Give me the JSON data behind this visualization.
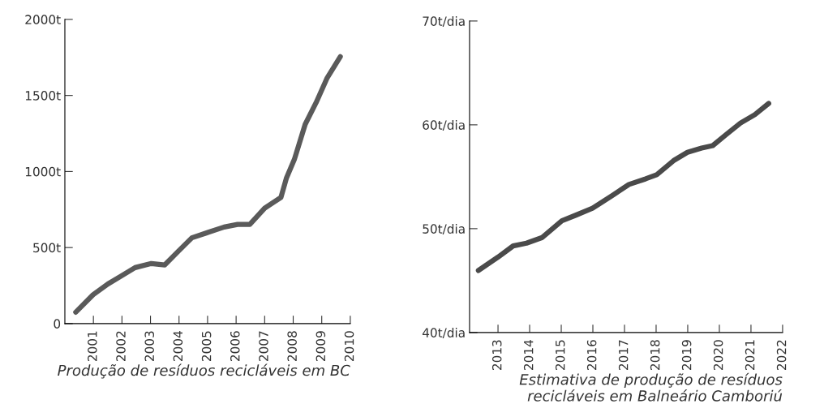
{
  "chart_data": [
    {
      "type": "line",
      "xlabel": "Produção de resíduos recicláveis em BC",
      "xlim": [
        2000,
        2010
      ],
      "xticks": [
        2001,
        2002,
        2003,
        2004,
        2005,
        2006,
        2007,
        2008,
        2009,
        2010
      ],
      "ylim": [
        0,
        2000
      ],
      "yticks": [
        0,
        {
          "value": 500,
          "label": "500t"
        },
        {
          "value": 1000,
          "label": "1000t"
        },
        {
          "value": 1500,
          "label": "1500t"
        },
        {
          "value": 2000,
          "label": "2000t"
        }
      ],
      "grid": false,
      "legend": false,
      "series": [
        {
          "color": "#5a5a5a",
          "x": [
            2000.38,
            2000.99,
            2001.51,
            2001.99,
            2002.46,
            2003.03,
            2003.5,
            2003.97,
            2004.45,
            2005.01,
            2005.58,
            2006.05,
            2006.48,
            2007.0,
            2007.57,
            2007.76,
            2008.04,
            2008.42,
            2008.8,
            2009.18,
            2009.65
          ],
          "values": [
            75,
            190,
            261,
            315,
            368,
            395,
            386,
            475,
            564,
            599,
            635,
            652,
            652,
            759,
            830,
            955,
            1079,
            1310,
            1452,
            1612,
            1755
          ]
        }
      ]
    },
    {
      "type": "line",
      "xlabel": "Estimativa de produção de resíduos\nrecicláveis em Balneário Camboriú",
      "xlim": [
        2012.1,
        2022
      ],
      "xticks": [
        2013,
        2014,
        2015,
        2016,
        2017,
        2018,
        2019,
        2020,
        2021,
        2022
      ],
      "ylim": [
        40,
        70
      ],
      "yticks": [
        {
          "value": 40,
          "label": "40t/dia"
        },
        {
          "value": 50,
          "label": "50t/dia"
        },
        {
          "value": 60,
          "label": "60t/dia"
        },
        {
          "value": 70,
          "label": "70t/dia"
        }
      ],
      "grid": false,
      "legend": false,
      "series": [
        {
          "color": "#4a4a4a",
          "x": [
            2012.38,
            2013.0,
            2013.48,
            2013.9,
            2014.4,
            2015.02,
            2015.46,
            2015.99,
            2016.61,
            2017.14,
            2017.67,
            2018.02,
            2018.55,
            2018.99,
            2019.44,
            2019.79,
            2020.23,
            2020.67,
            2021.12,
            2021.56
          ],
          "values": [
            45.97,
            47.26,
            48.34,
            48.6,
            49.15,
            50.76,
            51.3,
            51.97,
            53.18,
            54.26,
            54.8,
            55.2,
            56.55,
            57.35,
            57.76,
            58.0,
            59.1,
            60.18,
            60.98,
            62.06
          ]
        }
      ]
    }
  ]
}
